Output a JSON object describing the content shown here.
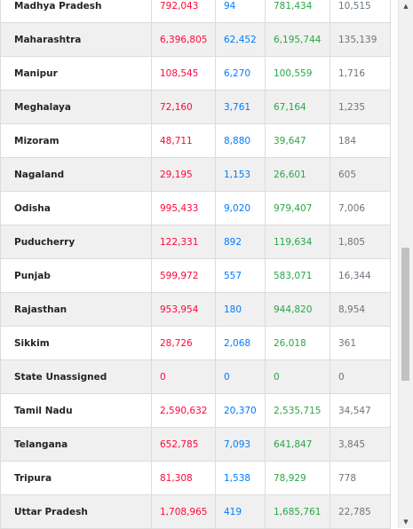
{
  "table": {
    "rows": [
      {
        "state": "Madhya Pradesh",
        "confirmed": "792,043",
        "active": "94",
        "recovered": "781,434",
        "deceased": "10,515"
      },
      {
        "state": "Maharashtra",
        "confirmed": "6,396,805",
        "active": "62,452",
        "recovered": "6,195,744",
        "deceased": "135,139"
      },
      {
        "state": "Manipur",
        "confirmed": "108,545",
        "active": "6,270",
        "recovered": "100,559",
        "deceased": "1,716"
      },
      {
        "state": "Meghalaya",
        "confirmed": "72,160",
        "active": "3,761",
        "recovered": "67,164",
        "deceased": "1,235"
      },
      {
        "state": "Mizoram",
        "confirmed": "48,711",
        "active": "8,880",
        "recovered": "39,647",
        "deceased": "184"
      },
      {
        "state": "Nagaland",
        "confirmed": "29,195",
        "active": "1,153",
        "recovered": "26,601",
        "deceased": "605"
      },
      {
        "state": "Odisha",
        "confirmed": "995,433",
        "active": "9,020",
        "recovered": "979,407",
        "deceased": "7,006"
      },
      {
        "state": "Puducherry",
        "confirmed": "122,331",
        "active": "892",
        "recovered": "119,634",
        "deceased": "1,805"
      },
      {
        "state": "Punjab",
        "confirmed": "599,972",
        "active": "557",
        "recovered": "583,071",
        "deceased": "16,344"
      },
      {
        "state": "Rajasthan",
        "confirmed": "953,954",
        "active": "180",
        "recovered": "944,820",
        "deceased": "8,954"
      },
      {
        "state": "Sikkim",
        "confirmed": "28,726",
        "active": "2,068",
        "recovered": "26,018",
        "deceased": "361"
      },
      {
        "state": "State Unassigned",
        "confirmed": "0",
        "active": "0",
        "recovered": "0",
        "deceased": "0"
      },
      {
        "state": "Tamil Nadu",
        "confirmed": "2,590,632",
        "active": "20,370",
        "recovered": "2,535,715",
        "deceased": "34,547"
      },
      {
        "state": "Telangana",
        "confirmed": "652,785",
        "active": "7,093",
        "recovered": "641,847",
        "deceased": "3,845"
      },
      {
        "state": "Tripura",
        "confirmed": "81,308",
        "active": "1,538",
        "recovered": "78,929",
        "deceased": "778"
      },
      {
        "state": "Uttar Pradesh",
        "confirmed": "1,708,965",
        "active": "419",
        "recovered": "1,685,761",
        "deceased": "22,785"
      }
    ]
  },
  "colors": {
    "confirmed": "#ff073a",
    "active": "#007bff",
    "recovered": "#28a745",
    "deceased": "#6c757d"
  },
  "scrollbar": {
    "up_icon": "triangle-up-icon",
    "down_icon": "triangle-down-icon",
    "position_fraction": 0.55
  }
}
